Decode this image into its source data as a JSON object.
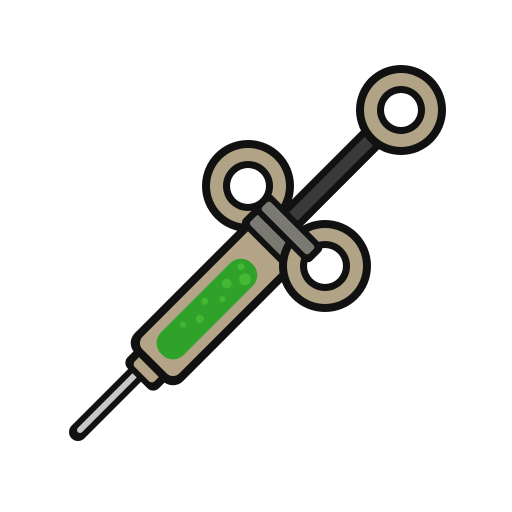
{
  "icon": {
    "name": "syringe-icon",
    "colors": {
      "background": "#ffffff",
      "outline": "#111111",
      "rings": "#b1a386",
      "barrel": "#b3a487",
      "plunger_rod": "#3a3a3a",
      "collar": "#7a7a72",
      "needle": "#c8c8c8",
      "liquid": "#2fa22a",
      "liquid_bubbles": "#43b834"
    },
    "liquid_fill_fraction": 0.7
  }
}
